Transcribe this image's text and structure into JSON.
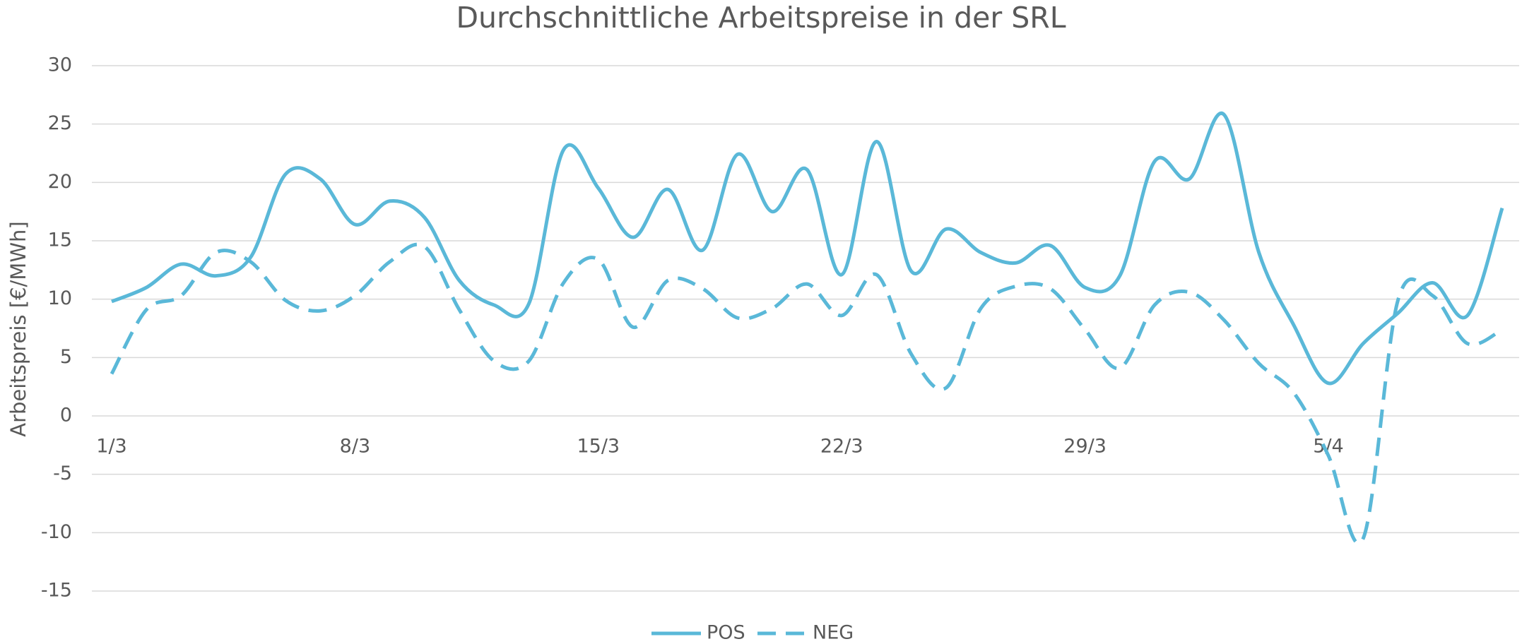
{
  "chart_data": {
    "type": "line",
    "title": "Durchschnittliche Arbeitspreise in der SRL",
    "y_label": "Arbeitspreis [€/MWh]",
    "categories": [
      "1/3",
      null,
      null,
      null,
      null,
      null,
      null,
      "8/3",
      null,
      null,
      null,
      null,
      null,
      null,
      "15/3",
      null,
      null,
      null,
      null,
      null,
      null,
      "22/3",
      null,
      null,
      null,
      null,
      null,
      null,
      "29/3",
      null,
      null,
      null,
      null,
      null,
      null,
      "5/4",
      null,
      null,
      null,
      null,
      null
    ],
    "series": [
      {
        "name": "POS",
        "color": "#5ab8d8",
        "dash": false,
        "values": [
          9.8,
          11,
          13.0,
          12.0,
          13.6,
          20.7,
          20.3,
          16.4,
          18.4,
          17.0,
          11.6,
          9.5,
          9.6,
          22.8,
          19.5,
          15.3,
          19.4,
          14.2,
          22.4,
          17.5,
          21.1,
          12.1,
          23.5,
          12.4,
          16.0,
          14.0,
          13.1,
          14.6,
          11.0,
          12.0,
          21.8,
          20.3,
          25.8,
          14.0,
          7.8,
          2.8,
          6.2,
          8.8,
          11.4,
          8.6,
          17.8
        ]
      },
      {
        "name": "NEG",
        "color": "#5ab8d8",
        "dash": true,
        "values": [
          3.6,
          9.1,
          10.3,
          14.0,
          13.2,
          9.9,
          9.0,
          10.3,
          13.2,
          14.5,
          9.1,
          4.7,
          4.7,
          11.4,
          13.4,
          7.6,
          11.6,
          10.9,
          8.4,
          9.2,
          11.3,
          8.6,
          12.1,
          5.3,
          2.4,
          9.2,
          11.1,
          10.9,
          7.4,
          4.1,
          9.5,
          10.6,
          8.2,
          4.5,
          2.0,
          -3.4,
          -10.5,
          9.9,
          10.3,
          6.2,
          7.4
        ]
      }
    ],
    "ylim": [
      -15,
      30
    ],
    "yticks": [
      -15,
      -10,
      -5,
      0,
      5,
      10,
      15,
      20,
      25,
      30
    ],
    "grid": true,
    "legend": "bottom"
  }
}
